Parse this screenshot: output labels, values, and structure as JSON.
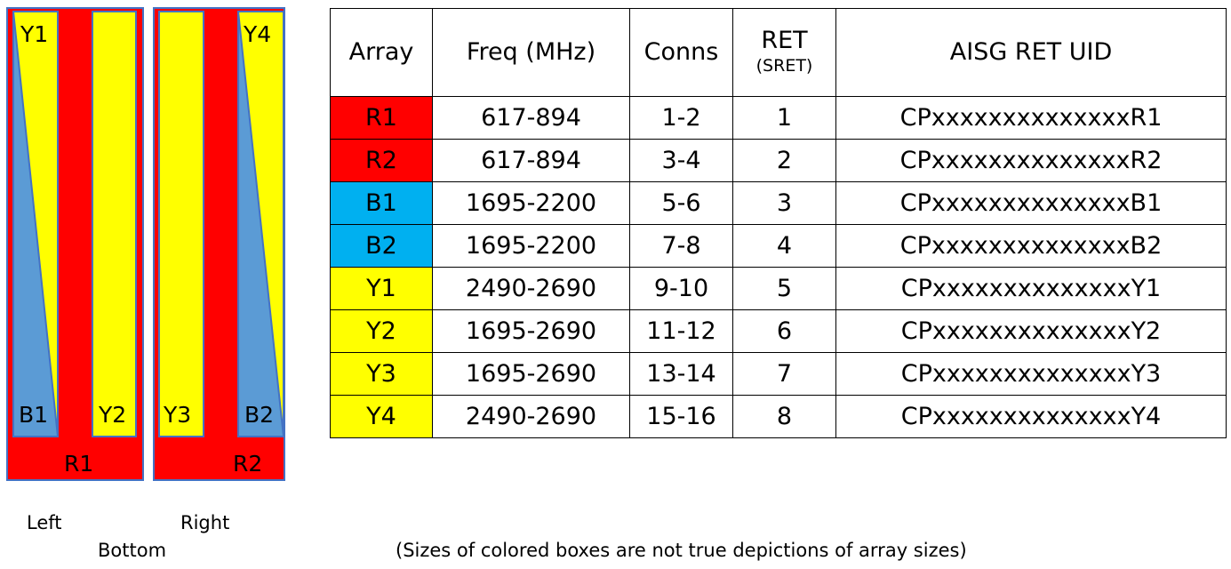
{
  "diagram": {
    "left_panel": {
      "label": "R1",
      "outer": "R1",
      "slant": "B1",
      "yellow": [
        "Y1",
        "Y2"
      ]
    },
    "right_panel": {
      "label": "R2",
      "outer": "R2",
      "slant": "B2",
      "yellow": [
        "Y3",
        "Y4"
      ]
    },
    "labels": {
      "y1": "Y1",
      "b1": "B1",
      "y2": "Y2",
      "r1": "R1",
      "y3": "Y3",
      "y4": "Y4",
      "b2": "B2",
      "r2": "R2"
    }
  },
  "colors": {
    "red": "#ff0000",
    "blue": "#5b9bd5",
    "cyan": "#00b0f0",
    "yellow": "#ffff00",
    "border": "#4472c4"
  },
  "table": {
    "headers": {
      "array": "Array",
      "freq": "Freq (MHz)",
      "conns": "Conns",
      "ret": "RET",
      "ret_sub": "(SRET)",
      "uid": "AISG RET UID"
    },
    "rows": [
      {
        "array": "R1",
        "freq": "617-894",
        "conns": "1-2",
        "ret": "1",
        "uid": "CPxxxxxxxxxxxxxxR1",
        "color": "#ff0000"
      },
      {
        "array": "R2",
        "freq": "617-894",
        "conns": "3-4",
        "ret": "2",
        "uid": "CPxxxxxxxxxxxxxxR2",
        "color": "#ff0000"
      },
      {
        "array": "B1",
        "freq": "1695-2200",
        "conns": "5-6",
        "ret": "3",
        "uid": "CPxxxxxxxxxxxxxxB1",
        "color": "#00b0f0"
      },
      {
        "array": "B2",
        "freq": "1695-2200",
        "conns": "7-8",
        "ret": "4",
        "uid": "CPxxxxxxxxxxxxxxB2",
        "color": "#00b0f0"
      },
      {
        "array": "Y1",
        "freq": "2490-2690",
        "conns": "9-10",
        "ret": "5",
        "uid": "CPxxxxxxxxxxxxxxY1",
        "color": "#ffff00"
      },
      {
        "array": "Y2",
        "freq": "1695-2690",
        "conns": "11-12",
        "ret": "6",
        "uid": "CPxxxxxxxxxxxxxxY2",
        "color": "#ffff00"
      },
      {
        "array": "Y3",
        "freq": "1695-2690",
        "conns": "13-14",
        "ret": "7",
        "uid": "CPxxxxxxxxxxxxxxY3",
        "color": "#ffff00"
      },
      {
        "array": "Y4",
        "freq": "2490-2690",
        "conns": "15-16",
        "ret": "8",
        "uid": "CPxxxxxxxxxxxxxxY4",
        "color": "#ffff00"
      }
    ]
  },
  "captions": {
    "left": "Left",
    "right": "Right",
    "bottom": "Bottom",
    "note": "(Sizes of colored boxes are not true depictions of array sizes)"
  }
}
